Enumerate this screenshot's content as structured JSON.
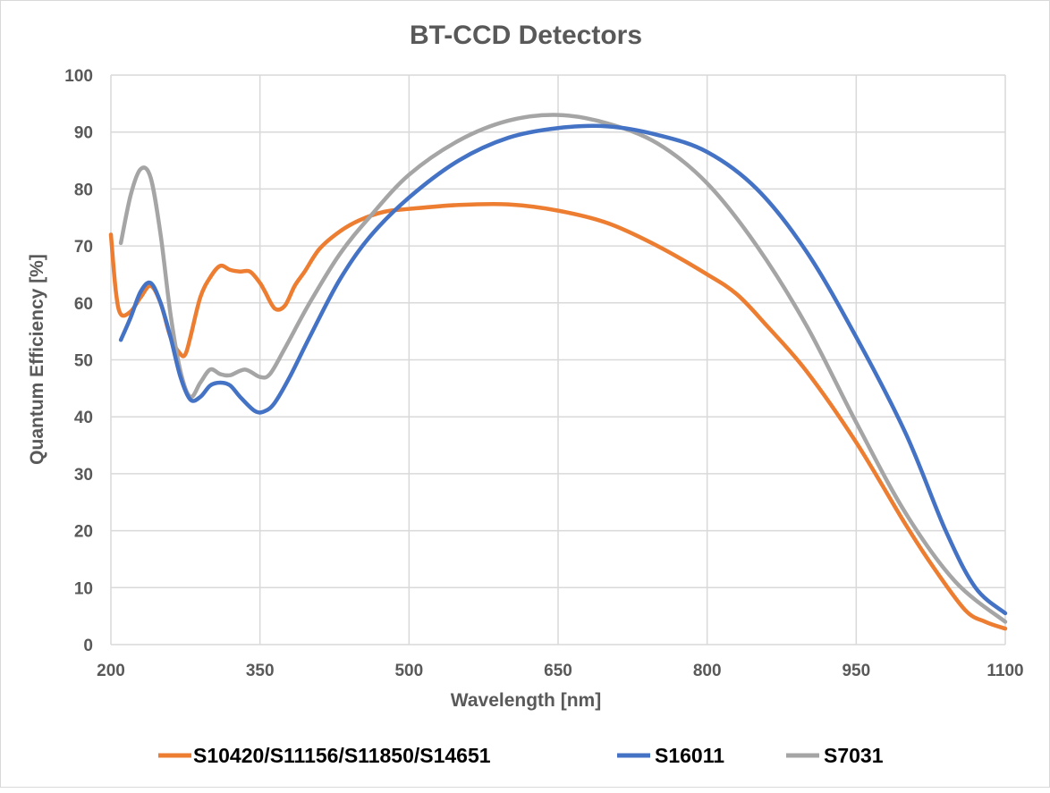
{
  "chart_data": {
    "type": "line",
    "title": "BT-CCD Detectors",
    "xlabel": "Wavelength [nm]",
    "ylabel": "Quantum Efficiency [%]",
    "xlim": [
      200,
      1100
    ],
    "ylim": [
      0,
      100
    ],
    "xticks": [
      200,
      350,
      500,
      650,
      800,
      950,
      1100
    ],
    "yticks": [
      0,
      10,
      20,
      30,
      40,
      50,
      60,
      70,
      80,
      90,
      100
    ],
    "grid": true,
    "legend_position": "bottom",
    "series": [
      {
        "name": "S10420/S11156/S11850/S14651",
        "color": "#ED7D31",
        "x": [
          200,
          205,
          210,
          220,
          230,
          240,
          250,
          260,
          270,
          275,
          280,
          290,
          300,
          310,
          320,
          330,
          340,
          350,
          355,
          365,
          375,
          385,
          395,
          410,
          430,
          450,
          475,
          500,
          550,
          600,
          650,
          700,
          750,
          800,
          830,
          860,
          900,
          950,
          1000,
          1030,
          1060,
          1080,
          1100
        ],
        "y": [
          72,
          62,
          58,
          58.5,
          61,
          63,
          60,
          54,
          51,
          51,
          54,
          61,
          64.5,
          66.5,
          65.8,
          65.5,
          65.5,
          63.5,
          62,
          59,
          59.5,
          63,
          65.5,
          69.5,
          72.5,
          74.5,
          76,
          76.5,
          77.2,
          77.3,
          76.2,
          74,
          70,
          65,
          61.5,
          56,
          48,
          35.5,
          21,
          13,
          6,
          4,
          2.8
        ]
      },
      {
        "name": "S16011",
        "color": "#4472C4",
        "x": [
          210,
          220,
          230,
          240,
          250,
          260,
          270,
          280,
          290,
          300,
          310,
          320,
          330,
          345,
          355,
          365,
          380,
          400,
          430,
          460,
          500,
          550,
          600,
          650,
          700,
          750,
          800,
          850,
          900,
          950,
          1000,
          1040,
          1070,
          1100
        ],
        "y": [
          53.5,
          57.5,
          62,
          63.5,
          60,
          54,
          47,
          43,
          43.5,
          45.5,
          46,
          45.5,
          43.5,
          41,
          41,
          42.5,
          47,
          54,
          64,
          71.5,
          78.5,
          85,
          89,
          90.7,
          91,
          89.5,
          86.5,
          80,
          69,
          54,
          37,
          20,
          10,
          5.5
        ]
      },
      {
        "name": "S7031",
        "color": "#A5A5A5",
        "x": [
          210,
          220,
          230,
          240,
          250,
          260,
          270,
          280,
          290,
          300,
          310,
          320,
          335,
          350,
          360,
          375,
          400,
          430,
          460,
          500,
          550,
          600,
          650,
          700,
          750,
          800,
          850,
          900,
          950,
          1000,
          1050,
          1100
        ],
        "y": [
          70.5,
          79,
          83.5,
          82,
          72,
          58,
          48,
          43.5,
          46,
          48.3,
          47.5,
          47.3,
          48.3,
          47,
          47.5,
          52,
          60,
          68.5,
          75,
          82.5,
          88.5,
          92,
          93,
          91.5,
          88,
          81,
          70,
          56,
          39,
          23,
          11,
          4
        ]
      }
    ]
  }
}
